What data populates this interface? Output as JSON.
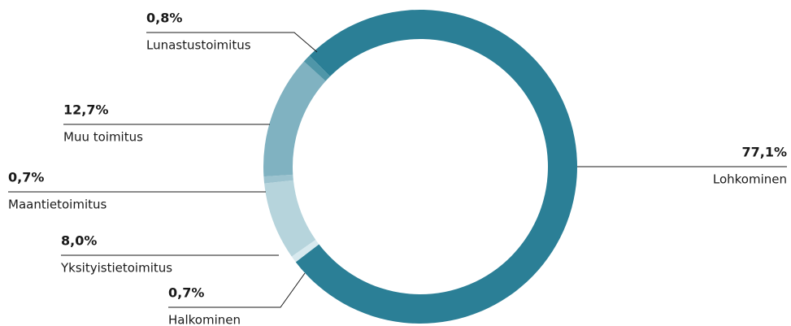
{
  "chart_data": {
    "type": "donut",
    "categories": [
      "Lohkominen",
      "Halkominen",
      "Yksityistietoimitus",
      "Maantietoimitus",
      "Muu toimitus",
      "Lunastustoimitus"
    ],
    "values": [
      77.1,
      0.7,
      8.0,
      0.7,
      12.7,
      0.8
    ],
    "value_labels": [
      "77,1%",
      "0,7%",
      "8,0%",
      "0,7%",
      "12,7%",
      "0,8%"
    ],
    "colors": [
      "#2b7f96",
      "#d7e9ee",
      "#b6d4dc",
      "#9cc3cf",
      "#80b2c1",
      "#4f96a8"
    ]
  }
}
